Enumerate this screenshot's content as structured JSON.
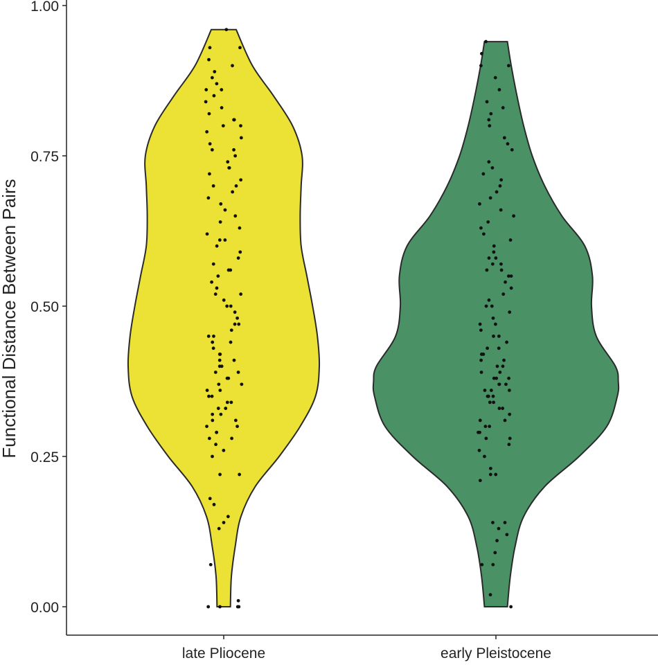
{
  "chart_data": {
    "type": "violin",
    "title": "",
    "xlabel": "",
    "ylabel": "Functional Distance Between Pairs",
    "ylim": [
      0,
      1
    ],
    "yticks": [
      "0.00",
      "0.25",
      "0.50",
      "0.75",
      "1.00"
    ],
    "ytick_values": [
      0,
      0.25,
      0.5,
      0.75,
      1.0
    ],
    "grid": false,
    "legend": "none",
    "categories": [
      "late Pliocene",
      "early Pleistocene"
    ],
    "series": [
      {
        "category": "late Pliocene",
        "color": "#ECE135",
        "range": [
          0,
          0.96
        ],
        "density_profile": [
          [
            0,
            0.07
          ],
          [
            0.05,
            0.08
          ],
          [
            0.1,
            0.12
          ],
          [
            0.15,
            0.18
          ],
          [
            0.2,
            0.33
          ],
          [
            0.25,
            0.58
          ],
          [
            0.3,
            0.8
          ],
          [
            0.35,
            0.96
          ],
          [
            0.4,
            1.0
          ],
          [
            0.45,
            0.98
          ],
          [
            0.5,
            0.93
          ],
          [
            0.55,
            0.87
          ],
          [
            0.6,
            0.81
          ],
          [
            0.65,
            0.8
          ],
          [
            0.7,
            0.81
          ],
          [
            0.75,
            0.82
          ],
          [
            0.8,
            0.72
          ],
          [
            0.85,
            0.52
          ],
          [
            0.9,
            0.3
          ],
          [
            0.96,
            0.13
          ]
        ],
        "points": [
          0,
          0,
          0,
          0,
          0.01,
          0.07,
          0.13,
          0.14,
          0.15,
          0.17,
          0.18,
          0.22,
          0.22,
          0.25,
          0.26,
          0.27,
          0.28,
          0.28,
          0.29,
          0.29,
          0.3,
          0.3,
          0.31,
          0.31,
          0.32,
          0.32,
          0.33,
          0.33,
          0.34,
          0.34,
          0.35,
          0.35,
          0.36,
          0.36,
          0.37,
          0.37,
          0.38,
          0.38,
          0.39,
          0.39,
          0.4,
          0.4,
          0.41,
          0.41,
          0.42,
          0.42,
          0.43,
          0.44,
          0.44,
          0.45,
          0.45,
          0.46,
          0.47,
          0.47,
          0.48,
          0.49,
          0.5,
          0.5,
          0.51,
          0.52,
          0.52,
          0.53,
          0.54,
          0.55,
          0.56,
          0.56,
          0.57,
          0.58,
          0.59,
          0.6,
          0.61,
          0.61,
          0.62,
          0.63,
          0.64,
          0.65,
          0.66,
          0.67,
          0.68,
          0.69,
          0.7,
          0.7,
          0.71,
          0.72,
          0.73,
          0.73,
          0.74,
          0.75,
          0.76,
          0.76,
          0.77,
          0.78,
          0.79,
          0.8,
          0.8,
          0.81,
          0.81,
          0.82,
          0.83,
          0.84,
          0.85,
          0.86,
          0.86,
          0.87,
          0.88,
          0.89,
          0.9,
          0.91,
          0.93,
          0.93,
          0.96
        ]
      },
      {
        "category": "early Pleistocene",
        "color": "#4A9166",
        "range": [
          0,
          0.94
        ],
        "density_profile": [
          [
            0,
            0.12
          ],
          [
            0.05,
            0.15
          ],
          [
            0.1,
            0.2
          ],
          [
            0.15,
            0.29
          ],
          [
            0.2,
            0.51
          ],
          [
            0.25,
            0.87
          ],
          [
            0.3,
            1.16
          ],
          [
            0.35,
            1.27
          ],
          [
            0.375,
            1.28
          ],
          [
            0.4,
            1.25
          ],
          [
            0.45,
            1.05
          ],
          [
            0.5,
            1.0
          ],
          [
            0.55,
            1.01
          ],
          [
            0.6,
            0.93
          ],
          [
            0.65,
            0.69
          ],
          [
            0.7,
            0.51
          ],
          [
            0.75,
            0.38
          ],
          [
            0.8,
            0.29
          ],
          [
            0.85,
            0.22
          ],
          [
            0.9,
            0.16
          ],
          [
            0.94,
            0.12
          ]
        ],
        "points": [
          0,
          0.02,
          0.07,
          0.07,
          0.09,
          0.11,
          0.12,
          0.13,
          0.14,
          0.14,
          0.21,
          0.22,
          0.22,
          0.23,
          0.25,
          0.26,
          0.27,
          0.28,
          0.28,
          0.29,
          0.29,
          0.3,
          0.3,
          0.31,
          0.31,
          0.32,
          0.33,
          0.33,
          0.34,
          0.34,
          0.35,
          0.35,
          0.35,
          0.36,
          0.36,
          0.36,
          0.37,
          0.37,
          0.37,
          0.38,
          0.38,
          0.38,
          0.39,
          0.39,
          0.4,
          0.4,
          0.41,
          0.41,
          0.42,
          0.42,
          0.43,
          0.43,
          0.44,
          0.45,
          0.45,
          0.46,
          0.47,
          0.47,
          0.48,
          0.49,
          0.5,
          0.5,
          0.51,
          0.52,
          0.53,
          0.54,
          0.55,
          0.55,
          0.56,
          0.56,
          0.57,
          0.57,
          0.58,
          0.58,
          0.59,
          0.6,
          0.61,
          0.62,
          0.63,
          0.64,
          0.65,
          0.66,
          0.67,
          0.68,
          0.69,
          0.7,
          0.71,
          0.72,
          0.73,
          0.74,
          0.76,
          0.77,
          0.78,
          0.8,
          0.81,
          0.82,
          0.83,
          0.84,
          0.86,
          0.88,
          0.9,
          0.9,
          0.92,
          0.94
        ]
      }
    ]
  }
}
